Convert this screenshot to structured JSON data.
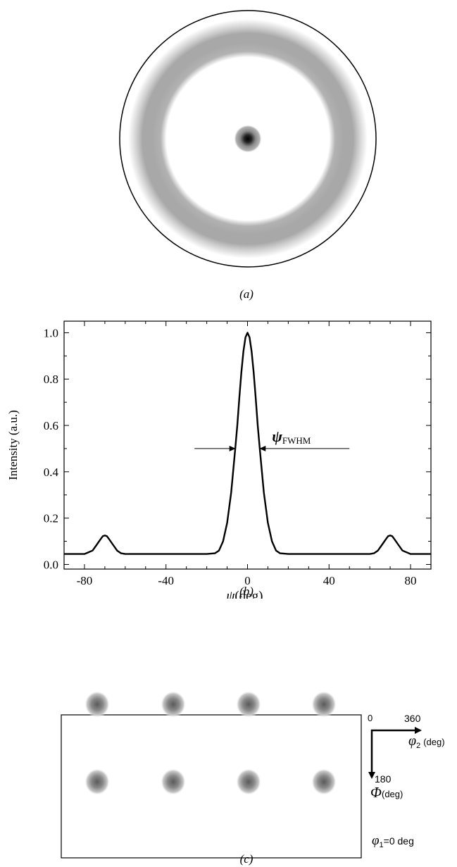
{
  "captions": {
    "a": "(a)",
    "b": "(b)",
    "c": "(c)"
  },
  "chart_data": {
    "type": "line",
    "title": "",
    "xlabel_symbol": "ψ",
    "xlabel_unit": "(deg)",
    "ylabel": "Intensity (a.u.)",
    "xlim": [
      -90,
      90
    ],
    "ylim": [
      -0.02,
      1.05
    ],
    "xticks": [
      -80,
      -40,
      0,
      40,
      80
    ],
    "xtick_labels": [
      "-80",
      "-40",
      "0",
      "40",
      "80"
    ],
    "yticks": [
      0.0,
      0.2,
      0.4,
      0.6,
      0.8,
      1.0
    ],
    "ytick_labels": [
      "0.0",
      "0.2",
      "0.4",
      "0.6",
      "0.8",
      "1.0"
    ],
    "grid": false,
    "series": [
      {
        "x": [
          -90,
          -80,
          -76,
          -74,
          -72,
          -71,
          -70,
          -69,
          -68,
          -66,
          -64,
          -62,
          -60,
          -50,
          -40,
          -30,
          -20,
          -16,
          -14,
          -12,
          -10,
          -8,
          -6,
          -5,
          -4,
          -3,
          -2,
          -1,
          0,
          1,
          2,
          3,
          4,
          5,
          6,
          8,
          10,
          12,
          14,
          16,
          20,
          30,
          40,
          50,
          60,
          62,
          64,
          66,
          68,
          69,
          70,
          71,
          72,
          74,
          76,
          80,
          90
        ],
        "y": [
          0.045,
          0.045,
          0.06,
          0.085,
          0.11,
          0.122,
          0.125,
          0.122,
          0.11,
          0.085,
          0.06,
          0.048,
          0.045,
          0.045,
          0.045,
          0.045,
          0.045,
          0.048,
          0.06,
          0.1,
          0.18,
          0.31,
          0.5,
          0.6,
          0.72,
          0.83,
          0.92,
          0.98,
          1.0,
          0.98,
          0.92,
          0.83,
          0.72,
          0.6,
          0.5,
          0.31,
          0.18,
          0.1,
          0.06,
          0.048,
          0.045,
          0.045,
          0.045,
          0.045,
          0.045,
          0.048,
          0.06,
          0.085,
          0.11,
          0.122,
          0.125,
          0.122,
          0.11,
          0.085,
          0.06,
          0.045,
          0.045
        ]
      }
    ],
    "annotation": {
      "symbol": "ψ",
      "subscript": "FWHM",
      "y": 0.5,
      "x_left": -5.8,
      "x_right": 5.8
    }
  },
  "panel_c": {
    "axis_start_label": "0",
    "phi2_max_label": "360",
    "phi2_symbol": "φ",
    "phi2_subscript": "2",
    "phi2_unit": "(deg)",
    "Phi_max_label": "180",
    "Phi_symbol": "Φ",
    "Phi_unit": "(deg)",
    "phi1_symbol": "φ",
    "phi1_subscript": "1",
    "phi1_value": "=0 deg"
  }
}
